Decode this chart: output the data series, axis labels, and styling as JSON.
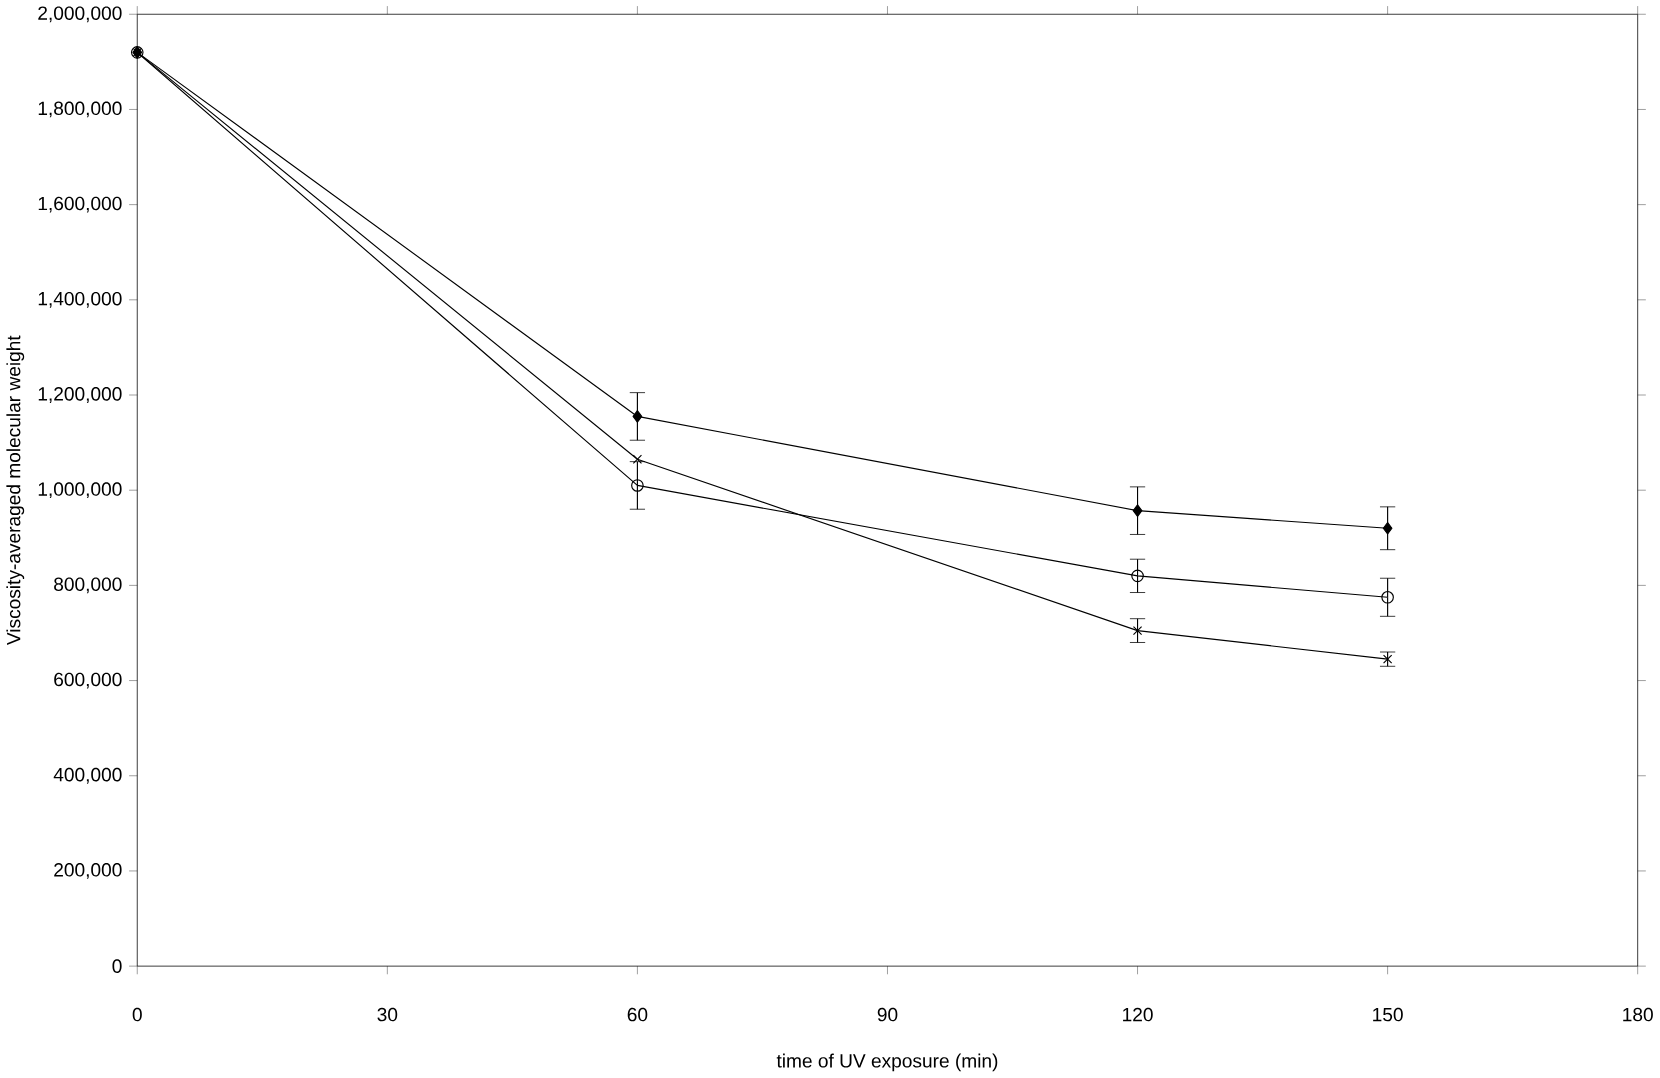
{
  "chart_data": {
    "type": "line",
    "xlabel": "time of UV exposure (min)",
    "ylabel": "Viscosity-averaged molecular weight",
    "x": [
      0,
      60,
      120,
      150
    ],
    "series": [
      {
        "color": "#000000",
        "marker": "diamond",
        "values": [
          1920000,
          1155000,
          957000,
          920000
        ],
        "errors": [
          null,
          50000,
          50000,
          45000
        ]
      },
      {
        "color": "#000000",
        "marker": "circle",
        "values": [
          1920000,
          1010000,
          820000,
          775000
        ],
        "errors": [
          null,
          50000,
          35000,
          40000
        ]
      },
      {
        "color": "#000000",
        "marker": "cross",
        "values": [
          1920000,
          1065000,
          705000,
          645000
        ],
        "errors": [
          null,
          null,
          25000,
          15000
        ]
      }
    ],
    "xlim": [
      0,
      180
    ],
    "xticks": [
      0,
      30,
      60,
      90,
      120,
      150,
      180
    ],
    "ylim": [
      0,
      2000000
    ],
    "yticks": [
      0,
      {
        "value": 200000,
        "label": "200,000"
      },
      {
        "value": 400000,
        "label": "400,000"
      },
      {
        "value": 600000,
        "label": "600,000"
      },
      {
        "value": 800000,
        "label": "800,000"
      },
      {
        "value": 1000000,
        "label": "1,000,000"
      },
      {
        "value": 1200000,
        "label": "1,200,000"
      },
      {
        "value": 1400000,
        "label": "1,400,000"
      },
      {
        "value": 1600000,
        "label": "1,600,000"
      },
      {
        "value": 1800000,
        "label": "1,800,000"
      },
      {
        "value": 2000000,
        "label": "2,000,000"
      }
    ],
    "grid": false,
    "line_style": "solid"
  }
}
